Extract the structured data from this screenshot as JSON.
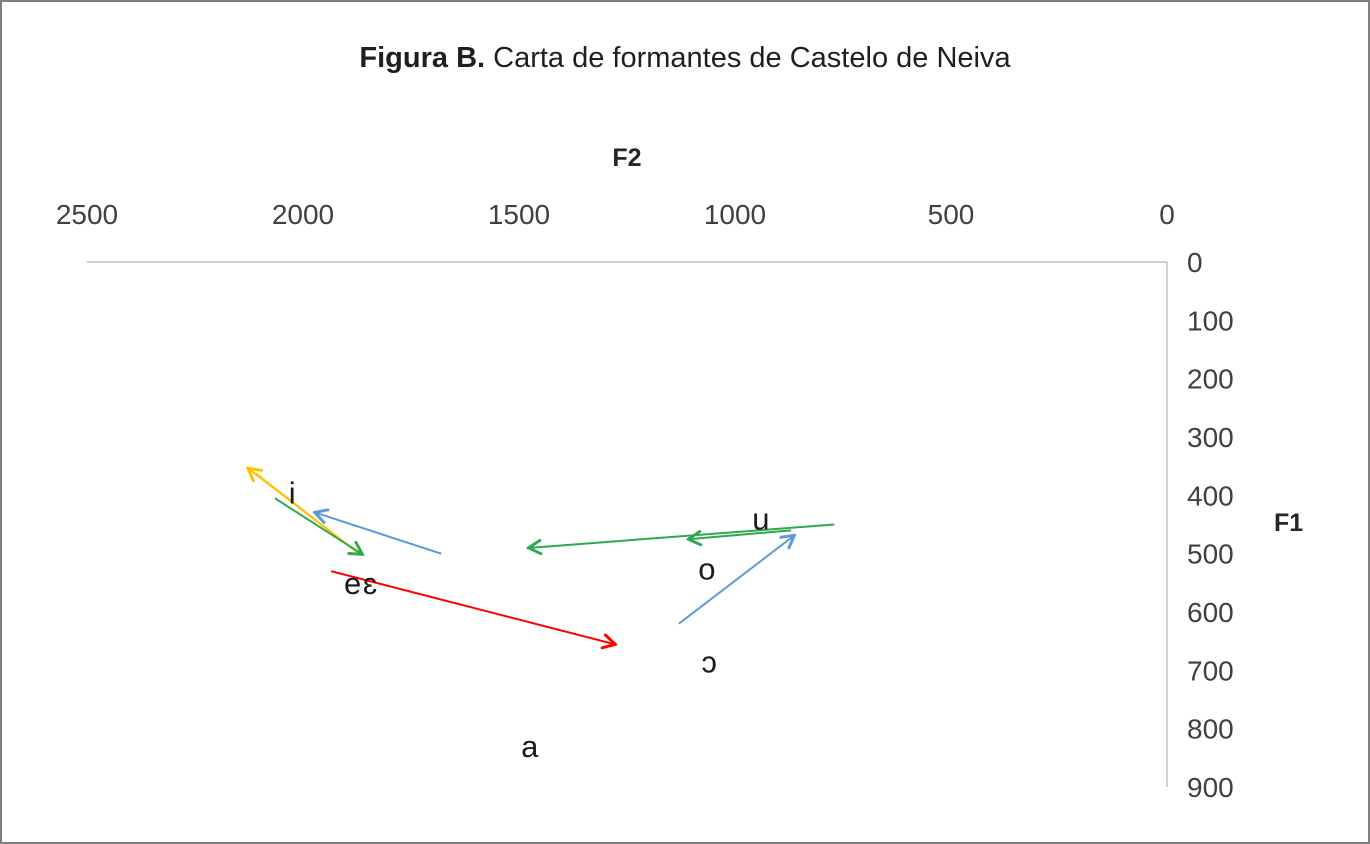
{
  "figure": {
    "title_bold": "Figura B.",
    "title_rest": "Carta de formantes de Castelo de Neiva"
  },
  "chart_data": {
    "type": "scatter",
    "title": "Figura B. Carta de formantes de Castelo de Neiva",
    "x_axis": {
      "label": "F2",
      "ticks": [
        2500,
        2000,
        1500,
        1000,
        500,
        0
      ],
      "range": [
        2500,
        0
      ],
      "reversed": true,
      "position": "top"
    },
    "y_axis": {
      "label": "F1",
      "ticks": [
        0,
        100,
        200,
        300,
        400,
        500,
        600,
        700,
        800,
        900
      ],
      "range": [
        0,
        900
      ],
      "reversed": true,
      "position": "right"
    },
    "grid": false,
    "legend": "none",
    "points": [
      {
        "label": "i",
        "f2": 2025,
        "f1": 395
      },
      {
        "label": "e",
        "f2": 1885,
        "f1": 550
      },
      {
        "label": "ɛ",
        "f2": 1845,
        "f1": 550
      },
      {
        "label": "u",
        "f2": 940,
        "f1": 440
      },
      {
        "label": "o",
        "f2": 1065,
        "f1": 525
      },
      {
        "label": "ɔ",
        "f2": 1060,
        "f1": 685
      },
      {
        "label": "a",
        "f2": 1475,
        "f1": 830
      }
    ],
    "arrows": [
      {
        "name": "orange-shift-up",
        "color": "#FFC000",
        "from": [
          1870,
          500
        ],
        "to": [
          2125,
          355
        ],
        "head": true
      },
      {
        "name": "orange-shift-return",
        "color": "#FFC000",
        "from": [
          2110,
          362
        ],
        "to": [
          1885,
          492
        ],
        "head": false
      },
      {
        "name": "green-shift-i-to-e",
        "color": "#2FA84F",
        "from": [
          2065,
          405
        ],
        "to": [
          1865,
          500
        ],
        "head": true
      },
      {
        "name": "green-shift-u-long",
        "color": "#2FA84F",
        "from": [
          770,
          450
        ],
        "to": [
          1475,
          490
        ],
        "head": true
      },
      {
        "name": "green-shift-u-short",
        "color": "#2FA84F",
        "from": [
          870,
          460
        ],
        "to": [
          1105,
          475
        ],
        "head": true
      },
      {
        "name": "blue-shift-to-i",
        "color": "#5B9BD5",
        "from": [
          1680,
          500
        ],
        "to": [
          1970,
          430
        ],
        "head": true
      },
      {
        "name": "blue-shift-o-to-u",
        "color": "#5B9BD5",
        "from": [
          1130,
          620
        ],
        "to": [
          865,
          470
        ],
        "head": true
      },
      {
        "name": "red-shift-e-to-a",
        "color": "#FF0000",
        "from": [
          1935,
          530
        ],
        "to": [
          1280,
          655
        ],
        "head": true
      }
    ],
    "axis_line_color": "#BFBFBF"
  }
}
